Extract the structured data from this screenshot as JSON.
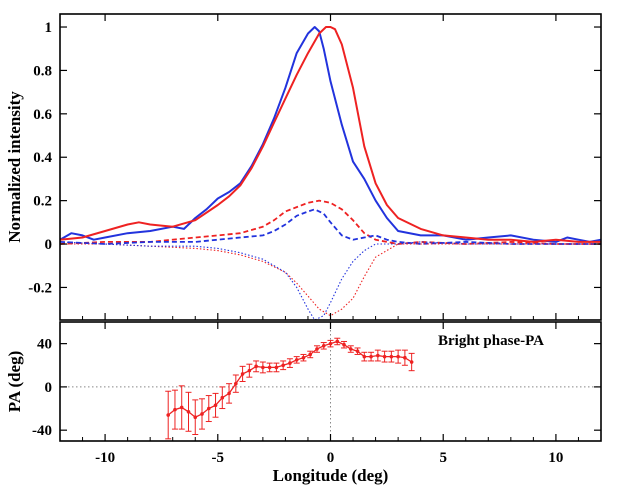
{
  "chart_data": [
    {
      "type": "line",
      "panel": "top",
      "ylabel": "Normalized intensity",
      "xlim": [
        -12,
        12
      ],
      "ylim": [
        -0.35,
        1.06
      ],
      "yticks": [
        -0.2,
        0,
        0.2,
        0.4,
        0.6,
        0.8,
        1
      ],
      "ytick_labels": [
        "-0.2",
        "0",
        "0.2",
        "0.4",
        "0.6",
        "0.8",
        "1"
      ],
      "grid": false,
      "colors": {
        "blue": "#2233dd",
        "red": "#ee2222"
      },
      "series": [
        {
          "color": "blue",
          "style": "solid",
          "x": [
            -12,
            -11.5,
            -11,
            -10.5,
            -10,
            -9,
            -8,
            -7,
            -6.5,
            -6,
            -5.5,
            -5,
            -4.5,
            -4,
            -3.5,
            -3,
            -2.5,
            -2,
            -1.5,
            -1,
            -0.7,
            -0.5,
            -0.3,
            0,
            0.5,
            1,
            1.5,
            2,
            2.5,
            3,
            4,
            5,
            6,
            7,
            8,
            9,
            10,
            10.5,
            11,
            11.5,
            12
          ],
          "y": [
            0.02,
            0.05,
            0.04,
            0.02,
            0.03,
            0.05,
            0.06,
            0.08,
            0.07,
            0.12,
            0.16,
            0.21,
            0.24,
            0.28,
            0.36,
            0.46,
            0.58,
            0.72,
            0.88,
            0.97,
            1.0,
            0.98,
            0.9,
            0.75,
            0.55,
            0.38,
            0.3,
            0.2,
            0.12,
            0.06,
            0.04,
            0.04,
            0.02,
            0.03,
            0.04,
            0.02,
            0.01,
            0.03,
            0.02,
            0.01,
            0.02
          ]
        },
        {
          "color": "red",
          "style": "solid",
          "x": [
            -12,
            -11,
            -10,
            -9,
            -8.5,
            -8,
            -7,
            -6,
            -5,
            -4.5,
            -4,
            -3.5,
            -3,
            -2.5,
            -2,
            -1.5,
            -1,
            -0.5,
            -0.2,
            0,
            0.2,
            0.5,
            1,
            1.5,
            2,
            2.5,
            3,
            4,
            5,
            6,
            7,
            8,
            9,
            10,
            11,
            12
          ],
          "y": [
            0.02,
            0.03,
            0.06,
            0.09,
            0.1,
            0.09,
            0.08,
            0.11,
            0.18,
            0.22,
            0.27,
            0.35,
            0.45,
            0.56,
            0.67,
            0.78,
            0.88,
            0.97,
            1.0,
            1.0,
            0.99,
            0.92,
            0.72,
            0.45,
            0.28,
            0.18,
            0.12,
            0.07,
            0.04,
            0.03,
            0.02,
            0.02,
            0.01,
            0.02,
            0.01,
            0.01
          ]
        },
        {
          "color": "red",
          "style": "dashed",
          "x": [
            -12,
            -10,
            -8,
            -6,
            -5,
            -4,
            -3,
            -2.5,
            -2,
            -1.5,
            -1,
            -0.5,
            0,
            0.5,
            1,
            1.5,
            2,
            2.5,
            3,
            4,
            6,
            8,
            10,
            12
          ],
          "y": [
            0.0,
            0.01,
            0.01,
            0.03,
            0.04,
            0.05,
            0.08,
            0.11,
            0.15,
            0.17,
            0.19,
            0.2,
            0.19,
            0.16,
            0.11,
            0.05,
            0.02,
            0.01,
            0.0,
            0.01,
            0.0,
            0.01,
            0.0,
            0.0
          ]
        },
        {
          "color": "blue",
          "style": "dashed",
          "x": [
            -12,
            -10,
            -8,
            -6,
            -5,
            -4,
            -3,
            -2.5,
            -2,
            -1.5,
            -1,
            -0.7,
            -0.3,
            0,
            0.5,
            1,
            1.5,
            2,
            2.5,
            3,
            4,
            6,
            8,
            10,
            12
          ],
          "y": [
            0.01,
            0.0,
            0.01,
            0.01,
            0.02,
            0.03,
            0.04,
            0.06,
            0.09,
            0.13,
            0.15,
            0.16,
            0.14,
            0.1,
            0.04,
            0.02,
            0.03,
            0.04,
            0.02,
            0.01,
            0.0,
            0.01,
            0.0,
            0.0,
            0.0
          ]
        },
        {
          "color": "red",
          "style": "dotted",
          "x": [
            -12,
            -10,
            -8,
            -6,
            -5,
            -4,
            -3,
            -2,
            -1.5,
            -1,
            -0.5,
            0,
            0.5,
            1,
            1.5,
            2,
            3,
            4,
            6,
            8,
            10,
            12
          ],
          "y": [
            0.0,
            0.0,
            -0.01,
            -0.02,
            -0.03,
            -0.05,
            -0.08,
            -0.13,
            -0.18,
            -0.24,
            -0.3,
            -0.33,
            -0.3,
            -0.25,
            -0.15,
            -0.06,
            0.0,
            0.0,
            0.0,
            0.0,
            0.0,
            0.0
          ]
        },
        {
          "color": "blue",
          "style": "dotted",
          "x": [
            -12,
            -10,
            -8,
            -6,
            -5,
            -4,
            -3,
            -2,
            -1.5,
            -1,
            -0.7,
            -0.3,
            0,
            0.5,
            1,
            1.5,
            2,
            3,
            4,
            6,
            8,
            10,
            12
          ],
          "y": [
            0.01,
            0.0,
            -0.01,
            -0.01,
            -0.02,
            -0.04,
            -0.07,
            -0.13,
            -0.2,
            -0.3,
            -0.35,
            -0.33,
            -0.27,
            -0.16,
            -0.08,
            -0.03,
            0.0,
            0.0,
            0.01,
            0.0,
            0.0,
            0.0,
            0.0
          ]
        }
      ]
    },
    {
      "type": "scatter",
      "panel": "bottom",
      "title": "Bright phase-PA",
      "xlabel": "Longitude (deg)",
      "ylabel": "PA (deg)",
      "xlim": [
        -12,
        12
      ],
      "ylim": [
        -50,
        60
      ],
      "xticks": [
        -10,
        -5,
        0,
        5,
        10
      ],
      "xtick_labels": [
        "-10",
        "-5",
        "0",
        "5",
        "10"
      ],
      "yticks": [
        -40,
        0,
        40
      ],
      "ytick_labels": [
        "-40",
        "0",
        "40"
      ],
      "reference_lines": {
        "x": 0,
        "y": 0,
        "style": "dotted"
      },
      "series": [
        {
          "color": "red",
          "x": [
            -7.2,
            -6.9,
            -6.6,
            -6.3,
            -6.0,
            -5.7,
            -5.4,
            -5.1,
            -4.8,
            -4.5,
            -4.2,
            -3.9,
            -3.6,
            -3.3,
            -3.0,
            -2.7,
            -2.4,
            -2.1,
            -1.8,
            -1.5,
            -1.2,
            -0.9,
            -0.6,
            -0.3,
            0.0,
            0.3,
            0.6,
            0.9,
            1.2,
            1.5,
            1.8,
            2.1,
            2.4,
            2.7,
            3.0,
            3.3,
            3.6
          ],
          "y": [
            -26,
            -21,
            -19,
            -23,
            -28,
            -25,
            -20,
            -17,
            -10,
            -6,
            3,
            12,
            15,
            19,
            18,
            18,
            18,
            20,
            22,
            25,
            27,
            30,
            35,
            38,
            40,
            42,
            39,
            35,
            33,
            28,
            28,
            29,
            28,
            28,
            28,
            27,
            23
          ],
          "err": [
            22,
            18,
            20,
            18,
            16,
            14,
            12,
            11,
            10,
            9,
            8,
            7,
            6,
            5,
            5,
            4,
            4,
            4,
            4,
            3,
            3,
            3,
            3,
            3,
            3,
            3,
            3,
            3,
            3,
            4,
            4,
            5,
            5,
            5,
            6,
            7,
            8
          ]
        }
      ]
    }
  ]
}
